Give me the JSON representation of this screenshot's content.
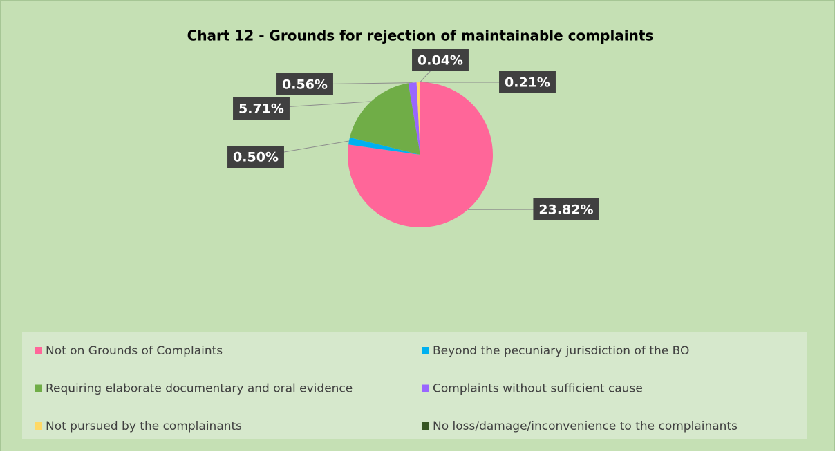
{
  "chart_data": {
    "type": "pie",
    "title": "Chart 12 - Grounds for rejection of maintainable complaints",
    "categories": [
      "Not on Grounds of Complaints",
      "Beyond the pecuniary jurisdiction of the BO",
      "Requiring elaborate documentary and oral evidence",
      "Complaints without sufficient cause",
      "Not pursued by the complainants",
      "No loss/damage/inconvenience to the complainants"
    ],
    "values": [
      23.82,
      0.5,
      5.71,
      0.56,
      0.21,
      0.04
    ],
    "value_labels": [
      "23.82%",
      "0.50%",
      "5.71%",
      "0.56%",
      "0.21%",
      "0.04%"
    ],
    "colors": [
      "#ff6699",
      "#00b0f0",
      "#70ad47",
      "#9966ff",
      "#ffd966",
      "#375623"
    ],
    "legend": "bottom"
  }
}
